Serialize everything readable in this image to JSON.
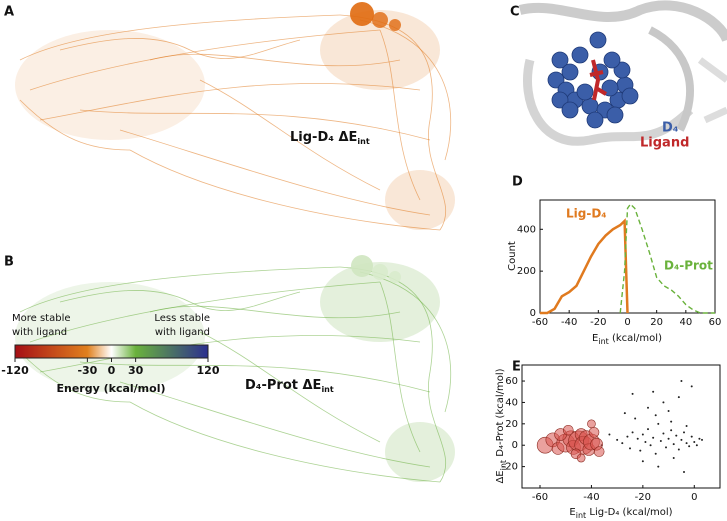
{
  "panel_labels": [
    "A",
    "B",
    "C",
    "D",
    "E"
  ],
  "network_a": {
    "caption": [
      "Lig-D₄ ΔE",
      "int"
    ],
    "color": "#e07a1f"
  },
  "network_b": {
    "caption": [
      "D₄-Prot ΔE",
      "int"
    ],
    "color": "#6aae3e"
  },
  "colorbar": {
    "left_label": [
      "More stable",
      "with ligand"
    ],
    "right_label": [
      "Less stable",
      "with ligand"
    ],
    "title": "Energy (kcal/mol)",
    "lim": [
      -120,
      120
    ],
    "ticks": [
      -120,
      -30,
      0,
      30,
      120
    ],
    "colors": [
      "#a50f15",
      "#e0801e",
      "#ffffff",
      "#6ab23c",
      "#2b2f8f"
    ]
  },
  "structure": {
    "legend": [
      "D₄",
      "Ligand"
    ],
    "colors": [
      "#3b5ea8",
      "#c0282a"
    ]
  },
  "chart_data": [
    {
      "type": "line",
      "ylabel": "Count",
      "xlabel": [
        "E",
        "int",
        " (kcal/mol)"
      ],
      "x": [
        -60,
        -55,
        -50,
        -45,
        -40,
        -35,
        -30,
        -25,
        -20,
        -15,
        -10,
        -5,
        -2,
        0,
        2,
        5,
        10,
        15,
        20,
        25,
        30,
        35,
        40,
        45,
        50,
        55,
        60
      ],
      "series": [
        {
          "name": "Lig-D₄",
          "color": "#e07a1f",
          "dashed": false,
          "values": [
            0,
            0,
            20,
            80,
            100,
            130,
            200,
            270,
            330,
            370,
            400,
            420,
            440,
            0,
            null,
            null,
            null,
            null,
            null,
            null,
            null,
            null,
            null,
            null,
            null,
            null,
            null
          ]
        },
        {
          "name": "D₄-Prot",
          "color": "#6ab23c",
          "dashed": true,
          "values": [
            null,
            null,
            null,
            null,
            null,
            null,
            null,
            null,
            null,
            null,
            null,
            0,
            200,
            500,
            520,
            500,
            400,
            290,
            170,
            130,
            110,
            80,
            40,
            15,
            0,
            0,
            0
          ]
        }
      ],
      "xlim": [
        -60,
        60
      ],
      "xticks": [
        -60,
        -40,
        -20,
        0,
        20,
        40,
        60
      ],
      "ylim": [
        0,
        540
      ],
      "yticks": [
        0,
        200,
        400
      ]
    },
    {
      "type": "scatter",
      "xlabel": [
        "E",
        "int",
        " Lig-D₄ (kcal/mol)"
      ],
      "ylabel": [
        "ΔE",
        "int",
        " D₄-Prot (kcal/mol)"
      ],
      "series": [
        {
          "color": "#222222",
          "x": [
            -30,
            -28,
            -26,
            -25,
            -24,
            -22,
            -21,
            -20,
            -19,
            -18,
            -17,
            -16,
            -15,
            -14,
            -13,
            -12,
            -11,
            -10,
            -9,
            -8,
            -7,
            -6,
            -5,
            -4,
            -3,
            -2,
            -1,
            0,
            1,
            2,
            -27,
            -23,
            -18,
            -15,
            -12,
            -9,
            -6,
            -3,
            -1,
            -20,
            -14,
            -8,
            -4,
            -33,
            -36,
            -10,
            -16,
            -5,
            3,
            -24
          ],
          "y": [
            5,
            2,
            8,
            -3,
            12,
            6,
            -5,
            10,
            3,
            15,
            0,
            7,
            -8,
            20,
            4,
            11,
            -2,
            6,
            14,
            1,
            9,
            -4,
            5,
            12,
            2,
            -1,
            8,
            3,
            0,
            6,
            30,
            25,
            35,
            28,
            40,
            22,
            45,
            18,
            55,
            -15,
            -20,
            -12,
            -25,
            10,
            0,
            32,
            50,
            60,
            5,
            48
          ]
        },
        {
          "color": "#d9534f",
          "x": [
            -58,
            -55,
            -53,
            -50,
            -48,
            -47,
            -45,
            -44,
            -43,
            -42,
            -41,
            -40,
            -39,
            -38,
            -37,
            -46,
            -52,
            -49,
            -44,
            -40
          ],
          "y": [
            0,
            5,
            -3,
            2,
            6,
            -2,
            4,
            10,
            0,
            7,
            -4,
            3,
            12,
            1,
            -6,
            -8,
            10,
            14,
            -12,
            20
          ],
          "sizes": [
            8,
            7,
            6,
            9,
            8,
            7,
            10,
            6,
            9,
            7,
            6,
            8,
            5,
            6,
            5,
            5,
            6,
            5,
            4,
            4
          ]
        }
      ],
      "xlim": [
        -67,
        10
      ],
      "xticks": [
        -60,
        -40,
        -20,
        0
      ],
      "ylim": [
        -40,
        75
      ],
      "yticks": [
        -20,
        0,
        20,
        40,
        60
      ]
    }
  ]
}
